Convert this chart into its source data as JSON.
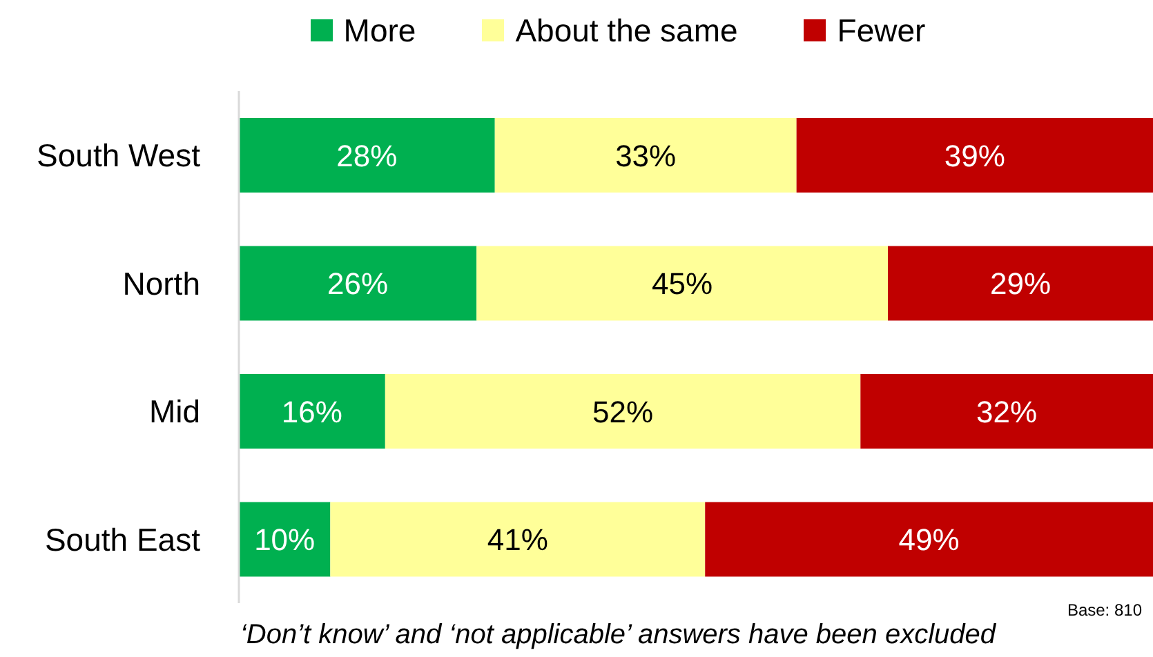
{
  "chart_data": {
    "type": "bar",
    "orientation": "horizontal",
    "stacked": true,
    "categories": [
      "South West",
      "North",
      "Mid",
      "South East"
    ],
    "series": [
      {
        "name": "More",
        "color": "#00b050",
        "values": [
          28,
          26,
          16,
          10
        ],
        "value_labels": [
          "28%",
          "26%",
          "16%",
          "10%"
        ]
      },
      {
        "name": "About the same",
        "color": "#ffff99",
        "values": [
          33,
          45,
          52,
          41
        ],
        "value_labels": [
          "33%",
          "45%",
          "52%",
          "41%"
        ]
      },
      {
        "name": "Fewer",
        "color": "#c00000",
        "values": [
          39,
          29,
          32,
          49
        ],
        "value_labels": [
          "39%",
          "29%",
          "32%",
          "49%"
        ]
      }
    ],
    "xlim": [
      0,
      100
    ],
    "tick_labels": "y",
    "legend": "top",
    "annotations": [
      "Base: 810",
      "‘Don’t know’ and ‘not applicable’ answers have been excluded"
    ]
  }
}
